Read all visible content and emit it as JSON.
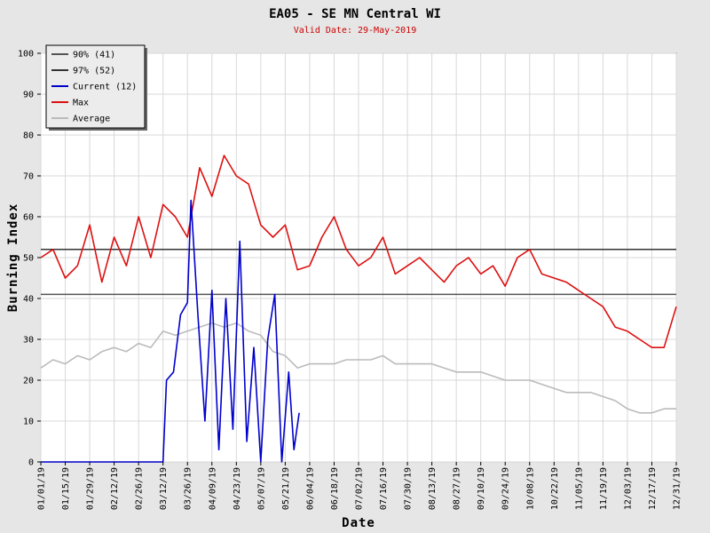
{
  "chart_data": {
    "type": "line",
    "title": "EA05 - SE MN Central WI",
    "subtitle": "Valid Date: 29-May-2019",
    "xlabel": "Date",
    "ylabel": "Burning Index",
    "ylim": [
      0,
      100
    ],
    "yticks": [
      0,
      10,
      20,
      30,
      40,
      50,
      60,
      70,
      80,
      90,
      100
    ],
    "x_tick_labels": [
      "01/01/19",
      "01/15/19",
      "01/29/19",
      "02/12/19",
      "02/26/19",
      "03/12/19",
      "03/26/19",
      "04/09/19",
      "04/23/19",
      "05/07/19",
      "05/21/19",
      "06/04/19",
      "06/18/19",
      "07/02/19",
      "07/16/19",
      "07/30/19",
      "08/13/19",
      "08/27/19",
      "09/10/19",
      "09/24/19",
      "10/08/19",
      "10/22/19",
      "11/05/19",
      "11/19/19",
      "12/03/19",
      "12/17/19",
      "12/31/19"
    ],
    "grid": true,
    "legend_position": "top-left",
    "thresholds": [
      {
        "name": "90% (41)",
        "value": 41,
        "color": "#555555"
      },
      {
        "name": "97% (52)",
        "value": 52,
        "color": "#333333"
      }
    ],
    "series": [
      {
        "name": "Current (12)",
        "color": "#0000cc",
        "x": [
          "01/01",
          "01/15",
          "01/29",
          "02/12",
          "02/26",
          "03/12",
          "03/14",
          "03/18",
          "03/22",
          "03/26",
          "03/28",
          "04/01",
          "04/05",
          "04/09",
          "04/13",
          "04/17",
          "04/21",
          "04/25",
          "04/29",
          "05/03",
          "05/07",
          "05/11",
          "05/15",
          "05/19",
          "05/23",
          "05/26",
          "05/29"
        ],
        "values": [
          0,
          0,
          0,
          0,
          0,
          0,
          20,
          22,
          36,
          39,
          64,
          36,
          10,
          42,
          3,
          40,
          8,
          54,
          5,
          28,
          0,
          30,
          41,
          0,
          22,
          3,
          12
        ]
      },
      {
        "name": "Max",
        "color": "#dd1111",
        "x": [
          "01/01",
          "01/08",
          "01/15",
          "01/22",
          "01/29",
          "02/05",
          "02/12",
          "02/19",
          "02/26",
          "03/05",
          "03/12",
          "03/19",
          "03/26",
          "04/02",
          "04/09",
          "04/16",
          "04/23",
          "04/30",
          "05/07",
          "05/14",
          "05/21",
          "05/28",
          "06/04",
          "06/11",
          "06/18",
          "06/25",
          "07/02",
          "07/09",
          "07/16",
          "07/23",
          "07/30",
          "08/06",
          "08/13",
          "08/20",
          "08/27",
          "09/03",
          "09/10",
          "09/17",
          "09/24",
          "10/01",
          "10/08",
          "10/15",
          "10/22",
          "10/29",
          "11/05",
          "11/12",
          "11/19",
          "11/26",
          "12/03",
          "12/10",
          "12/17",
          "12/24",
          "12/31"
        ],
        "values": [
          50,
          52,
          45,
          48,
          58,
          44,
          55,
          48,
          60,
          50,
          63,
          60,
          55,
          72,
          65,
          75,
          70,
          68,
          58,
          55,
          58,
          47,
          48,
          55,
          60,
          52,
          48,
          50,
          55,
          46,
          48,
          50,
          47,
          44,
          48,
          50,
          46,
          48,
          43,
          50,
          52,
          46,
          45,
          44,
          42,
          40,
          38,
          33,
          32,
          30,
          28,
          28,
          38
        ]
      },
      {
        "name": "Average",
        "color": "#bbbbbb",
        "x": [
          "01/01",
          "01/08",
          "01/15",
          "01/22",
          "01/29",
          "02/05",
          "02/12",
          "02/19",
          "02/26",
          "03/05",
          "03/12",
          "03/19",
          "03/26",
          "04/02",
          "04/09",
          "04/16",
          "04/23",
          "04/30",
          "05/07",
          "05/14",
          "05/21",
          "05/28",
          "06/04",
          "06/11",
          "06/18",
          "06/25",
          "07/02",
          "07/09",
          "07/16",
          "07/23",
          "07/30",
          "08/06",
          "08/13",
          "08/20",
          "08/27",
          "09/03",
          "09/10",
          "09/17",
          "09/24",
          "10/01",
          "10/08",
          "10/15",
          "10/22",
          "10/29",
          "11/05",
          "11/12",
          "11/19",
          "11/26",
          "12/03",
          "12/10",
          "12/17",
          "12/24",
          "12/31"
        ],
        "values": [
          23,
          25,
          24,
          26,
          25,
          27,
          28,
          27,
          29,
          28,
          32,
          31,
          32,
          33,
          34,
          33,
          34,
          32,
          31,
          27,
          26,
          23,
          24,
          24,
          24,
          25,
          25,
          25,
          26,
          24,
          24,
          24,
          24,
          23,
          22,
          22,
          22,
          21,
          20,
          20,
          20,
          19,
          18,
          17,
          17,
          17,
          16,
          15,
          13,
          12,
          12,
          13,
          13
        ]
      }
    ]
  }
}
